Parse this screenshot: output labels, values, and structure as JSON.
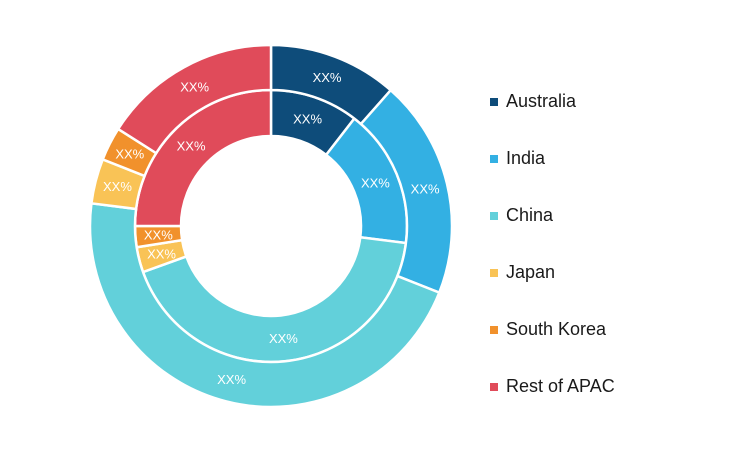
{
  "chart_data": {
    "type": "donut",
    "title": "",
    "categories": [
      "Australia",
      "India",
      "China",
      "Japan",
      "South Korea",
      "Rest of APAC"
    ],
    "colors": {
      "Australia": "#0e4c7a",
      "India": "#33b0e3",
      "China": "#62d0da",
      "Japan": "#f9c356",
      "South Korea": "#f1912c",
      "Rest of APAC": "#e04b5a"
    },
    "series": [
      {
        "ring": "inner",
        "values": [
          10.5,
          16.5,
          42.5,
          3.0,
          2.5,
          25.0
        ],
        "labels": [
          "XX%",
          "XX%",
          "XX%",
          "XX%",
          "XX%",
          "XX%"
        ]
      },
      {
        "ring": "outer",
        "values": [
          11.5,
          19.5,
          46.0,
          4.0,
          3.0,
          16.0
        ],
        "labels": [
          "XX%",
          "XX%",
          "XX%",
          "XX%",
          "XX%",
          "XX%"
        ]
      }
    ],
    "legend": {
      "position": "right",
      "entries": [
        "Australia",
        "India",
        "China",
        "Japan",
        "South Korea",
        "Rest of APAC"
      ]
    }
  }
}
